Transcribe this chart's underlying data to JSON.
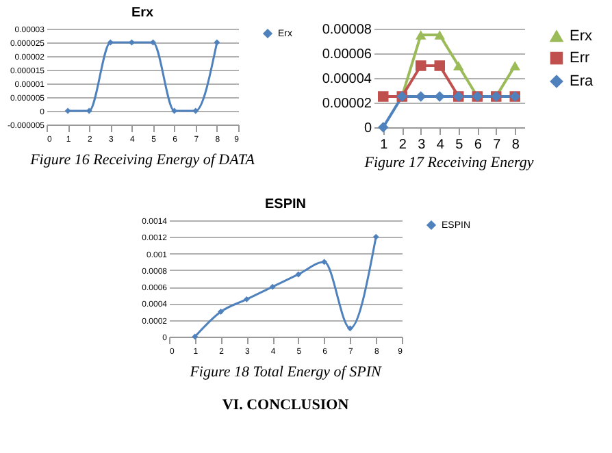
{
  "chart_data": [
    {
      "type": "line",
      "title": "Erx",
      "x": [
        1,
        2,
        3,
        4,
        5,
        6,
        7,
        8
      ],
      "xlim": [
        0,
        9
      ],
      "xticks": [
        0,
        1,
        2,
        3,
        4,
        5,
        6,
        7,
        8,
        9
      ],
      "ylim": [
        -5e-06,
        3e-05
      ],
      "yticks": [
        {
          "value": -5e-06,
          "label": "-0.000005"
        },
        {
          "value": 0,
          "label": "0"
        },
        {
          "value": 5e-06,
          "label": "0.000005"
        },
        {
          "value": 1e-05,
          "label": "0.00001"
        },
        {
          "value": 1.5e-05,
          "label": "0.000015"
        },
        {
          "value": 2e-05,
          "label": "0.00002"
        },
        {
          "value": 2.5e-05,
          "label": "0.000025"
        },
        {
          "value": 3e-05,
          "label": "0.00003"
        }
      ],
      "grid": "y",
      "legend": "right",
      "marker": "diamond",
      "series": [
        {
          "name": "Erx",
          "color": "#4f81bd",
          "values": [
            0,
            0,
            2.5e-05,
            2.5e-05,
            2.5e-05,
            0,
            0,
            2.5e-05
          ]
        }
      ],
      "annotations": [
        "Figure 16 Receiving Energy of DATA"
      ]
    },
    {
      "type": "line",
      "categories": [
        "1",
        "2",
        "3",
        "4",
        "5",
        "6",
        "7",
        "8"
      ],
      "ylim": [
        0,
        8e-05
      ],
      "yticks": [
        {
          "value": 0,
          "label": "0"
        },
        {
          "value": 2e-05,
          "label": "0.00002"
        },
        {
          "value": 4e-05,
          "label": "0.00004"
        },
        {
          "value": 6e-05,
          "label": "0.00006"
        },
        {
          "value": 8e-05,
          "label": "0.00008"
        }
      ],
      "grid": "y",
      "legend": "right",
      "series": [
        {
          "name": "Erx",
          "color": "#9bbb59",
          "marker": "triangle",
          "values": [
            2.5e-05,
            2.5e-05,
            7.5e-05,
            7.5e-05,
            5e-05,
            2.5e-05,
            2.5e-05,
            5e-05
          ]
        },
        {
          "name": "Err",
          "color": "#c0504d",
          "marker": "square",
          "values": [
            2.5e-05,
            2.5e-05,
            5e-05,
            5e-05,
            2.5e-05,
            2.5e-05,
            2.5e-05,
            2.5e-05
          ]
        },
        {
          "name": "Era",
          "color": "#4f81bd",
          "marker": "diamond",
          "values": [
            0,
            2.5e-05,
            2.5e-05,
            2.5e-05,
            2.5e-05,
            2.5e-05,
            2.5e-05,
            2.5e-05
          ]
        }
      ],
      "annotations": [
        "Figure 17 Receiving Energy"
      ]
    },
    {
      "type": "line",
      "title": "ESPIN",
      "x": [
        1,
        2,
        3,
        4,
        5,
        6,
        7,
        8
      ],
      "xlim": [
        0,
        9
      ],
      "xticks": [
        0,
        1,
        2,
        3,
        4,
        5,
        6,
        7,
        8,
        9
      ],
      "ylim": [
        0,
        0.0014
      ],
      "yticks": [
        {
          "value": 0,
          "label": "0"
        },
        {
          "value": 0.0002,
          "label": "0.0002"
        },
        {
          "value": 0.0004,
          "label": "0.0004"
        },
        {
          "value": 0.0006,
          "label": "0.0006"
        },
        {
          "value": 0.0008,
          "label": "0.0008"
        },
        {
          "value": 0.001,
          "label": "0.001"
        },
        {
          "value": 0.0012,
          "label": "0.0012"
        },
        {
          "value": 0.0014,
          "label": "0.0014"
        }
      ],
      "grid": "y",
      "legend": "right",
      "marker": "diamond",
      "series": [
        {
          "name": "ESPIN",
          "color": "#4f81bd",
          "values": [
            0,
            0.0003,
            0.00045,
            0.0006,
            0.00075,
            0.0009,
            0.0001,
            0.0012
          ]
        }
      ],
      "annotations": [
        "Figure 18 Total Energy of SPIN",
        "VI.        CONCLUSION"
      ]
    }
  ]
}
